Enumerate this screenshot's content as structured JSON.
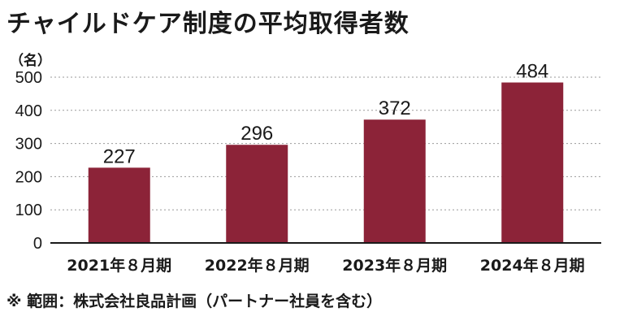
{
  "chart_data": {
    "type": "bar",
    "title": "チャイルドケア制度の平均取得者数",
    "unit_label": "（名）",
    "categories": [
      "2021年８月期",
      "2022年８月期",
      "2023年８月期",
      "2024年８月期"
    ],
    "values": [
      227,
      296,
      372,
      484
    ],
    "ylim": [
      0,
      500
    ],
    "yticks": [
      0,
      100,
      200,
      300,
      400,
      500
    ],
    "grid": true,
    "footnote": "※ 範囲：株式会社良品計画（パートナー社員を含む）"
  },
  "colors": {
    "bar": "#8c2338",
    "grid": "#9a9a9a",
    "axis": "#1a1a1a",
    "text": "#1a1a1a"
  }
}
